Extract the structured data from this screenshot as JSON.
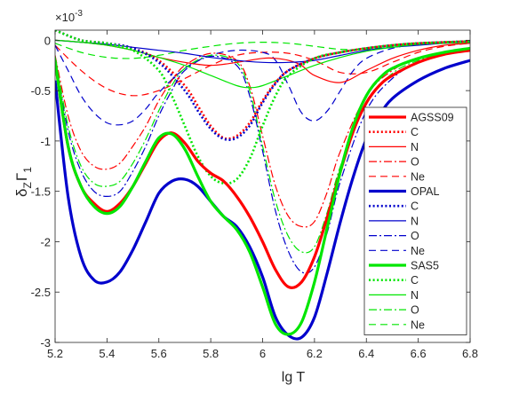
{
  "chart_data": {
    "type": "line",
    "xlabel": "lg T",
    "ylabel_main": "δ",
    "ylabel_sub": "Z",
    "ylabel_main2": "Γ",
    "ylabel_sub2": "1",
    "exponent_label": "×10",
    "exponent_power": "-3",
    "xlim": [
      5.2,
      6.8
    ],
    "ylim": [
      -3.0,
      0.1
    ],
    "xticks": [
      5.2,
      5.4,
      5.6,
      5.8,
      6.0,
      6.2,
      6.4,
      6.6,
      6.8
    ],
    "xtick_labels": [
      "5.2",
      "5.4",
      "5.6",
      "5.8",
      "6",
      "6.2",
      "6.4",
      "6.6",
      "6.8"
    ],
    "yticks": [
      0,
      -0.5,
      -1,
      -1.5,
      -2,
      -2.5,
      -3
    ],
    "ytick_labels": [
      "0",
      "-0.5",
      "-1",
      "-1.5",
      "-2",
      "-2.5",
      "-3"
    ],
    "colors": {
      "AGSS09": "#ff0000",
      "OPAL": "#0000cc",
      "SAS5": "#00e600"
    },
    "legend": {
      "placement": "right",
      "entries": [
        {
          "label": "AGSS09",
          "group": "AGSS09",
          "style": "thick"
        },
        {
          "label": "C",
          "group": "AGSS09",
          "style": "dotted"
        },
        {
          "label": "N",
          "group": "AGSS09",
          "style": "solid"
        },
        {
          "label": "O",
          "group": "AGSS09",
          "style": "dashdot"
        },
        {
          "label": "Ne",
          "group": "AGSS09",
          "style": "dashed"
        },
        {
          "label": "OPAL",
          "group": "OPAL",
          "style": "thick"
        },
        {
          "label": "C",
          "group": "OPAL",
          "style": "dotted"
        },
        {
          "label": "N",
          "group": "OPAL",
          "style": "solid"
        },
        {
          "label": "O",
          "group": "OPAL",
          "style": "dashdot"
        },
        {
          "label": "Ne",
          "group": "OPAL",
          "style": "dashed"
        },
        {
          "label": "SAS5",
          "group": "SAS5",
          "style": "thick"
        },
        {
          "label": "C",
          "group": "SAS5",
          "style": "dotted"
        },
        {
          "label": "N",
          "group": "SAS5",
          "style": "solid"
        },
        {
          "label": "O",
          "group": "SAS5",
          "style": "dashdot"
        },
        {
          "label": "Ne",
          "group": "SAS5",
          "style": "dashed"
        }
      ]
    },
    "series": [
      {
        "group": "AGSS09",
        "style": "thick",
        "x": [
          5.2,
          5.25,
          5.3,
          5.35,
          5.4,
          5.45,
          5.5,
          5.55,
          5.6,
          5.65,
          5.7,
          5.75,
          5.8,
          5.85,
          5.9,
          5.95,
          6.0,
          6.05,
          6.1,
          6.15,
          6.2,
          6.25,
          6.3,
          6.35,
          6.4,
          6.45,
          6.5,
          6.6,
          6.7,
          6.8
        ],
        "y": [
          -0.2,
          -1.05,
          -1.45,
          -1.62,
          -1.7,
          -1.62,
          -1.45,
          -1.22,
          -1.0,
          -0.92,
          -1.02,
          -1.2,
          -1.32,
          -1.4,
          -1.55,
          -1.75,
          -2.0,
          -2.28,
          -2.45,
          -2.4,
          -2.15,
          -1.75,
          -1.3,
          -0.9,
          -0.62,
          -0.45,
          -0.35,
          -0.22,
          -0.14,
          -0.1
        ]
      },
      {
        "group": "AGSS09",
        "style": "dotted",
        "x": [
          5.2,
          5.3,
          5.4,
          5.5,
          5.6,
          5.7,
          5.75,
          5.8,
          5.85,
          5.9,
          5.95,
          6.0,
          6.05,
          6.1,
          6.2,
          6.3,
          6.4,
          6.5,
          6.6,
          6.7,
          6.8
        ],
        "y": [
          0.1,
          0.0,
          -0.03,
          -0.08,
          -0.2,
          -0.45,
          -0.65,
          -0.85,
          -0.97,
          -0.95,
          -0.82,
          -0.6,
          -0.42,
          -0.3,
          -0.18,
          -0.12,
          -0.08,
          -0.05,
          -0.03,
          -0.02,
          -0.01
        ]
      },
      {
        "group": "AGSS09",
        "style": "solid",
        "x": [
          5.2,
          5.3,
          5.4,
          5.5,
          5.6,
          5.7,
          5.8,
          5.9,
          6.0,
          6.05,
          6.1,
          6.15,
          6.2,
          6.3,
          6.4,
          6.5,
          6.6,
          6.7,
          6.8
        ],
        "y": [
          0.0,
          -0.02,
          -0.05,
          -0.1,
          -0.17,
          -0.22,
          -0.25,
          -0.22,
          -0.18,
          -0.18,
          -0.2,
          -0.25,
          -0.35,
          -0.42,
          -0.3,
          -0.18,
          -0.1,
          -0.05,
          -0.03
        ]
      },
      {
        "group": "AGSS09",
        "style": "dashdot",
        "x": [
          5.2,
          5.25,
          5.3,
          5.35,
          5.4,
          5.45,
          5.5,
          5.55,
          5.6,
          5.65,
          5.7,
          5.8,
          5.9,
          5.95,
          6.0,
          6.05,
          6.1,
          6.15,
          6.2,
          6.25,
          6.3,
          6.4,
          6.5,
          6.6,
          6.7,
          6.8
        ],
        "y": [
          -0.15,
          -0.75,
          -1.1,
          -1.25,
          -1.28,
          -1.22,
          -1.05,
          -0.85,
          -0.6,
          -0.4,
          -0.25,
          -0.13,
          -0.2,
          -0.45,
          -0.95,
          -1.45,
          -1.75,
          -1.85,
          -1.8,
          -1.5,
          -1.1,
          -0.55,
          -0.3,
          -0.18,
          -0.12,
          -0.08
        ]
      },
      {
        "group": "AGSS09",
        "style": "dashed",
        "x": [
          5.2,
          5.3,
          5.4,
          5.5,
          5.6,
          5.7,
          5.8,
          5.9,
          6.0,
          6.1,
          6.2,
          6.3,
          6.4,
          6.5,
          6.6,
          6.7,
          6.8
        ],
        "y": [
          -0.05,
          -0.3,
          -0.48,
          -0.55,
          -0.5,
          -0.38,
          -0.25,
          -0.15,
          -0.12,
          -0.13,
          -0.2,
          -0.32,
          -0.32,
          -0.22,
          -0.12,
          -0.06,
          -0.03
        ]
      },
      {
        "group": "OPAL",
        "style": "thick",
        "x": [
          5.2,
          5.25,
          5.3,
          5.35,
          5.4,
          5.45,
          5.5,
          5.55,
          5.6,
          5.65,
          5.7,
          5.75,
          5.8,
          5.85,
          5.9,
          5.95,
          6.0,
          6.05,
          6.1,
          6.15,
          6.2,
          6.25,
          6.3,
          6.35,
          6.4,
          6.45,
          6.5,
          6.6,
          6.7,
          6.8
        ],
        "y": [
          -0.4,
          -1.55,
          -2.15,
          -2.38,
          -2.4,
          -2.3,
          -2.08,
          -1.8,
          -1.52,
          -1.4,
          -1.38,
          -1.45,
          -1.6,
          -1.75,
          -1.85,
          -2.05,
          -2.35,
          -2.75,
          -2.93,
          -2.95,
          -2.75,
          -2.3,
          -1.8,
          -1.35,
          -0.98,
          -0.75,
          -0.58,
          -0.4,
          -0.28,
          -0.2
        ]
      },
      {
        "group": "OPAL",
        "style": "dotted",
        "x": [
          5.2,
          5.3,
          5.4,
          5.5,
          5.6,
          5.7,
          5.75,
          5.8,
          5.85,
          5.9,
          5.95,
          6.0,
          6.05,
          6.1,
          6.2,
          6.3,
          6.4,
          6.5,
          6.6,
          6.7,
          6.8
        ],
        "y": [
          0.1,
          0.0,
          -0.03,
          -0.08,
          -0.22,
          -0.5,
          -0.7,
          -0.88,
          -0.98,
          -0.97,
          -0.85,
          -0.62,
          -0.43,
          -0.3,
          -0.18,
          -0.12,
          -0.08,
          -0.05,
          -0.03,
          -0.02,
          -0.01
        ]
      },
      {
        "group": "OPAL",
        "style": "solid",
        "x": [
          5.2,
          5.3,
          5.4,
          5.5,
          5.6,
          5.7,
          5.8,
          5.9,
          6.0,
          6.1,
          6.2,
          6.3,
          6.4,
          6.5,
          6.6,
          6.7,
          6.8
        ],
        "y": [
          0.0,
          -0.02,
          -0.04,
          -0.07,
          -0.1,
          -0.13,
          -0.17,
          -0.2,
          -0.22,
          -0.22,
          -0.2,
          -0.15,
          -0.1,
          -0.07,
          -0.05,
          -0.03,
          -0.02
        ]
      },
      {
        "group": "OPAL",
        "style": "dashdot",
        "x": [
          5.2,
          5.25,
          5.3,
          5.35,
          5.4,
          5.45,
          5.5,
          5.55,
          5.6,
          5.65,
          5.7,
          5.8,
          5.9,
          5.95,
          6.0,
          6.05,
          6.1,
          6.15,
          6.2,
          6.25,
          6.3,
          6.4,
          6.5,
          6.6,
          6.7,
          6.8
        ],
        "y": [
          -0.18,
          -0.9,
          -1.3,
          -1.5,
          -1.55,
          -1.5,
          -1.3,
          -1.05,
          -0.75,
          -0.5,
          -0.3,
          -0.16,
          -0.25,
          -0.55,
          -1.1,
          -1.7,
          -2.1,
          -2.3,
          -2.25,
          -1.9,
          -1.4,
          -0.7,
          -0.38,
          -0.22,
          -0.14,
          -0.1
        ]
      },
      {
        "group": "OPAL",
        "style": "dashed",
        "x": [
          5.2,
          5.25,
          5.3,
          5.35,
          5.4,
          5.45,
          5.5,
          5.55,
          5.6,
          5.7,
          5.8,
          5.9,
          6.0,
          6.05,
          6.1,
          6.15,
          6.2,
          6.25,
          6.3,
          6.35,
          6.4,
          6.5,
          6.6,
          6.7,
          6.8
        ],
        "y": [
          -0.05,
          -0.3,
          -0.55,
          -0.72,
          -0.82,
          -0.84,
          -0.8,
          -0.68,
          -0.52,
          -0.28,
          -0.15,
          -0.1,
          -0.12,
          -0.2,
          -0.45,
          -0.72,
          -0.8,
          -0.7,
          -0.5,
          -0.3,
          -0.18,
          -0.08,
          -0.04,
          -0.02,
          -0.01
        ]
      },
      {
        "group": "SAS5",
        "style": "thick",
        "x": [
          5.2,
          5.25,
          5.3,
          5.35,
          5.4,
          5.45,
          5.5,
          5.55,
          5.6,
          5.65,
          5.7,
          5.75,
          5.8,
          5.85,
          5.9,
          5.95,
          6.0,
          6.05,
          6.1,
          6.15,
          6.2,
          6.25,
          6.3,
          6.35,
          6.4,
          6.45,
          6.5,
          6.6,
          6.7,
          6.8
        ],
        "y": [
          -0.2,
          -1.05,
          -1.45,
          -1.65,
          -1.72,
          -1.65,
          -1.45,
          -1.2,
          -0.97,
          -0.93,
          -1.08,
          -1.35,
          -1.6,
          -1.75,
          -1.88,
          -2.1,
          -2.45,
          -2.82,
          -2.92,
          -2.8,
          -2.4,
          -1.85,
          -1.3,
          -0.85,
          -0.55,
          -0.38,
          -0.28,
          -0.18,
          -0.12,
          -0.08
        ]
      },
      {
        "group": "SAS5",
        "style": "dotted",
        "x": [
          5.2,
          5.3,
          5.4,
          5.5,
          5.6,
          5.65,
          5.7,
          5.75,
          5.8,
          5.85,
          5.9,
          5.95,
          6.0,
          6.05,
          6.1,
          6.2,
          6.3,
          6.4,
          6.5,
          6.6,
          6.7,
          6.8
        ],
        "y": [
          0.1,
          0.0,
          -0.03,
          -0.1,
          -0.3,
          -0.55,
          -0.85,
          -1.15,
          -1.35,
          -1.42,
          -1.38,
          -1.18,
          -0.85,
          -0.55,
          -0.35,
          -0.18,
          -0.12,
          -0.08,
          -0.05,
          -0.03,
          -0.02,
          -0.01
        ]
      },
      {
        "group": "SAS5",
        "style": "solid",
        "x": [
          5.2,
          5.3,
          5.4,
          5.5,
          5.6,
          5.7,
          5.8,
          5.9,
          5.95,
          6.0,
          6.1,
          6.2,
          6.3,
          6.4,
          6.5,
          6.6,
          6.7,
          6.8
        ],
        "y": [
          0.0,
          -0.02,
          -0.05,
          -0.1,
          -0.17,
          -0.25,
          -0.35,
          -0.45,
          -0.47,
          -0.45,
          -0.35,
          -0.25,
          -0.17,
          -0.11,
          -0.07,
          -0.04,
          -0.03,
          -0.02
        ]
      },
      {
        "group": "SAS5",
        "style": "dashdot",
        "x": [
          5.2,
          5.25,
          5.3,
          5.35,
          5.4,
          5.45,
          5.5,
          5.55,
          5.6,
          5.65,
          5.7,
          5.8,
          5.9,
          5.95,
          6.0,
          6.05,
          6.1,
          6.15,
          6.2,
          6.25,
          6.3,
          6.4,
          6.5,
          6.6,
          6.7,
          6.8
        ],
        "y": [
          -0.16,
          -0.85,
          -1.25,
          -1.42,
          -1.45,
          -1.4,
          -1.22,
          -0.98,
          -0.7,
          -0.45,
          -0.28,
          -0.15,
          -0.22,
          -0.5,
          -1.05,
          -1.6,
          -1.95,
          -2.1,
          -2.05,
          -1.7,
          -1.25,
          -0.62,
          -0.33,
          -0.2,
          -0.13,
          -0.09
        ]
      },
      {
        "group": "SAS5",
        "style": "dashed",
        "x": [
          5.2,
          5.3,
          5.4,
          5.5,
          5.6,
          5.7,
          5.8,
          5.9,
          6.0,
          6.1,
          6.2,
          6.3,
          6.4,
          6.5,
          6.6,
          6.7,
          6.8
        ],
        "y": [
          -0.03,
          -0.12,
          -0.17,
          -0.18,
          -0.15,
          -0.1,
          -0.06,
          -0.03,
          -0.02,
          -0.03,
          -0.06,
          -0.09,
          -0.09,
          -0.06,
          -0.03,
          -0.02,
          -0.01
        ]
      }
    ]
  }
}
